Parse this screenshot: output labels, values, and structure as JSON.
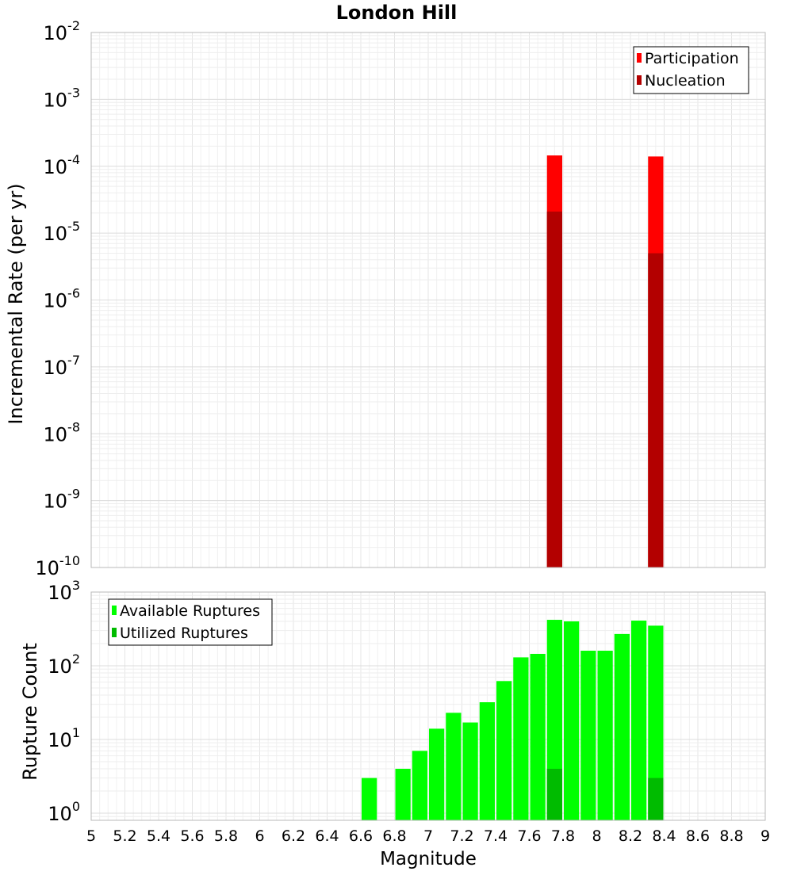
{
  "chart_data": [
    {
      "type": "bar",
      "title": "London Hill",
      "ylabel": "Incremental Rate (per yr)",
      "yscale": "log",
      "ylim": [
        1e-10,
        0.01
      ],
      "xlim": [
        5,
        9
      ],
      "y_tick_labels": [
        {
          "base": "10",
          "exp": "-10"
        },
        {
          "base": "10",
          "exp": "-9"
        },
        {
          "base": "10",
          "exp": "-8"
        },
        {
          "base": "10",
          "exp": "-7"
        },
        {
          "base": "10",
          "exp": "-6"
        },
        {
          "base": "10",
          "exp": "-5"
        },
        {
          "base": "10",
          "exp": "-4"
        },
        {
          "base": "10",
          "exp": "-3"
        },
        {
          "base": "10",
          "exp": "-2"
        }
      ],
      "grid": true,
      "legend": "top-right",
      "series": [
        {
          "name": "Participation",
          "color": "#ff0000",
          "x": [
            7.75,
            8.35
          ],
          "values": [
            0.000145,
            0.00014
          ]
        },
        {
          "name": "Nucleation",
          "color": "#b30000",
          "x": [
            7.75,
            8.35
          ],
          "values": [
            2.1e-05,
            5e-06
          ]
        }
      ]
    },
    {
      "type": "bar",
      "xlabel": "Magnitude",
      "ylabel": "Rupture Count",
      "yscale": "log",
      "ylim": [
        0.8,
        1000
      ],
      "xlim": [
        5,
        9
      ],
      "x_tick_labels": [
        "5",
        "5.2",
        "5.4",
        "5.6",
        "5.8",
        "6",
        "6.2",
        "6.4",
        "6.6",
        "6.8",
        "7",
        "7.2",
        "7.4",
        "7.6",
        "7.8",
        "8",
        "8.2",
        "8.4",
        "8.6",
        "8.8",
        "9"
      ],
      "y_tick_labels": [
        {
          "base": "10",
          "exp": "0"
        },
        {
          "base": "10",
          "exp": "1"
        },
        {
          "base": "10",
          "exp": "2"
        },
        {
          "base": "10",
          "exp": "3"
        }
      ],
      "grid": true,
      "legend": "top-left",
      "series": [
        {
          "name": "Available Ruptures",
          "color": "#00ff00",
          "x": [
            6.65,
            6.85,
            6.95,
            7.05,
            7.15,
            7.25,
            7.35,
            7.45,
            7.55,
            7.65,
            7.75,
            7.85,
            7.95,
            8.05,
            8.15,
            8.25,
            8.35
          ],
          "values": [
            3,
            4,
            7,
            14,
            23,
            17,
            32,
            62,
            130,
            145,
            420,
            400,
            160,
            160,
            270,
            410,
            350
          ]
        },
        {
          "name": "Utilized Ruptures",
          "color": "#00bb00",
          "x": [
            7.75,
            8.35
          ],
          "values": [
            4,
            3
          ]
        }
      ]
    }
  ]
}
